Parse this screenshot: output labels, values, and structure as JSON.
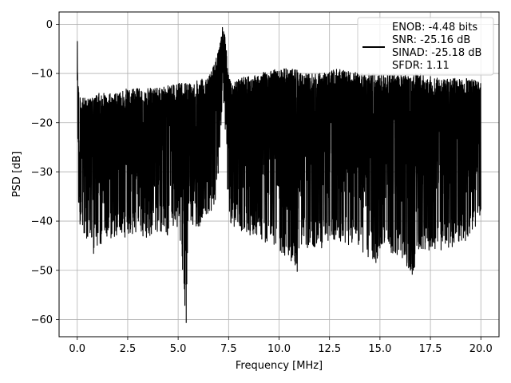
{
  "chart_data": {
    "type": "line",
    "title": "",
    "xlabel": "Frequency [MHz]",
    "ylabel": "PSD [dB]",
    "xlim": [
      -0.9,
      20.9
    ],
    "ylim": [
      -63.5,
      2.5
    ],
    "xticks": [
      0.0,
      2.5,
      5.0,
      7.5,
      10.0,
      12.5,
      15.0,
      17.5,
      20.0
    ],
    "xtick_labels": [
      "0.0",
      "2.5",
      "5.0",
      "7.5",
      "10.0",
      "12.5",
      "15.0",
      "17.5",
      "20.0"
    ],
    "yticks": [
      0,
      -10,
      -20,
      -30,
      -40,
      -50,
      -60
    ],
    "ytick_labels": [
      "0",
      "−10",
      "−20",
      "−30",
      "−40",
      "−50",
      "−60"
    ],
    "grid": true,
    "legend_position": "top-right",
    "line_color": "#000000",
    "legend_lines": [
      "ENOB: -4.48 bits",
      "SNR: -25.16 dB",
      "SINAD: -25.18 dB",
      "SFDR: 1.11"
    ],
    "series": [
      {
        "x": [
          0.0,
          0.02,
          0.05,
          0.1,
          0.2,
          0.4,
          0.6,
          0.8,
          1.0,
          1.5,
          2.0,
          2.5,
          3.0,
          3.5,
          4.0,
          4.5,
          5.0,
          5.4,
          5.5,
          6.0,
          6.5,
          6.8,
          7.0,
          7.1,
          7.2,
          7.3,
          7.4,
          7.5,
          7.7,
          8.0,
          9.0,
          10.0,
          10.9,
          11.0,
          12.0,
          13.0,
          14.0,
          14.8,
          15.0,
          16.0,
          16.6,
          17.0,
          18.0,
          19.0,
          19.5,
          20.0
        ],
        "upper": [
          -2,
          -8,
          -11,
          -14,
          -15,
          -15,
          -15,
          -15,
          -14,
          -14,
          -14,
          -13,
          -13,
          -13,
          -13,
          -12,
          -12,
          -12,
          -12,
          -11,
          -10,
          -8,
          -5,
          -3,
          0,
          -2,
          -5,
          -10,
          -12,
          -11,
          -10,
          -9,
          -9,
          -10,
          -10,
          -9,
          -10,
          -10,
          -10,
          -10,
          -10,
          -10,
          -11,
          -11,
          -11,
          -12
        ],
        "lower": [
          -20,
          -30,
          -38,
          -40,
          -42,
          -46,
          -45,
          -47,
          -45,
          -44,
          -43,
          -44,
          -42,
          -44,
          -42,
          -43,
          -41,
          -60.7,
          -41,
          -42,
          -39,
          -38,
          -30,
          -22,
          -16,
          -20,
          -28,
          -40,
          -41,
          -42,
          -44,
          -46,
          -50.3,
          -45,
          -46,
          -44,
          -46,
          -48.5,
          -46,
          -47,
          -50.9,
          -46,
          -46,
          -45,
          -43,
          -39
        ]
      }
    ]
  }
}
